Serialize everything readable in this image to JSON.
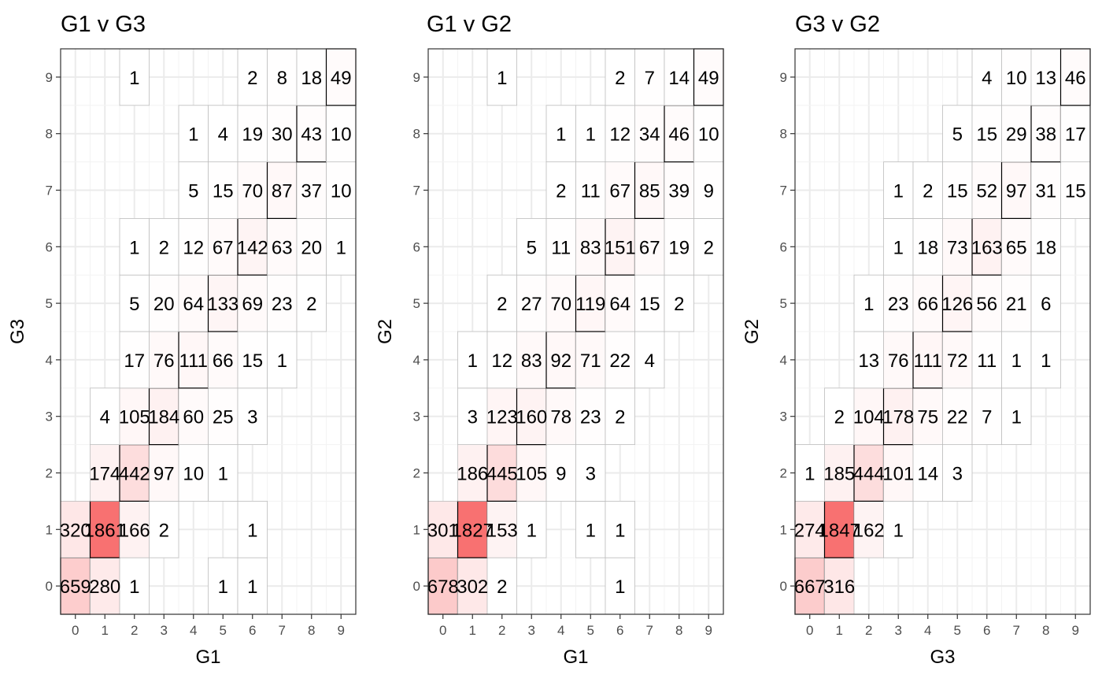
{
  "chart_data": [
    {
      "type": "heatmap",
      "title": "G1 v G3",
      "xlabel": "G1",
      "ylabel": "G3",
      "x_ticks": [
        "0",
        "1",
        "2",
        "3",
        "4",
        "5",
        "6",
        "7",
        "8",
        "9"
      ],
      "y_ticks": [
        "0",
        "1",
        "2",
        "3",
        "4",
        "5",
        "6",
        "7",
        "8",
        "9"
      ],
      "xlim": [
        -0.5,
        9.5
      ],
      "ylim": [
        -0.5,
        9.5
      ],
      "grid": true,
      "fill_colors": {
        "low": "#ffffff",
        "high": "#f87171"
      },
      "highlight_border": "#000000",
      "cells": [
        {
          "x": 0,
          "y": 0,
          "v": 659
        },
        {
          "x": 1,
          "y": 0,
          "v": 280
        },
        {
          "x": 2,
          "y": 0,
          "v": 1
        },
        {
          "x": 5,
          "y": 0,
          "v": 1
        },
        {
          "x": 6,
          "y": 0,
          "v": 1
        },
        {
          "x": 0,
          "y": 1,
          "v": 320
        },
        {
          "x": 1,
          "y": 1,
          "v": 1861
        },
        {
          "x": 2,
          "y": 1,
          "v": 166
        },
        {
          "x": 3,
          "y": 1,
          "v": 2
        },
        {
          "x": 6,
          "y": 1,
          "v": 1
        },
        {
          "x": 1,
          "y": 2,
          "v": 174
        },
        {
          "x": 2,
          "y": 2,
          "v": 442
        },
        {
          "x": 3,
          "y": 2,
          "v": 97
        },
        {
          "x": 4,
          "y": 2,
          "v": 10
        },
        {
          "x": 5,
          "y": 2,
          "v": 1
        },
        {
          "x": 1,
          "y": 3,
          "v": 4
        },
        {
          "x": 2,
          "y": 3,
          "v": 105
        },
        {
          "x": 3,
          "y": 3,
          "v": 184
        },
        {
          "x": 4,
          "y": 3,
          "v": 60
        },
        {
          "x": 5,
          "y": 3,
          "v": 25
        },
        {
          "x": 6,
          "y": 3,
          "v": 3
        },
        {
          "x": 2,
          "y": 4,
          "v": 17
        },
        {
          "x": 3,
          "y": 4,
          "v": 76
        },
        {
          "x": 4,
          "y": 4,
          "v": 111
        },
        {
          "x": 5,
          "y": 4,
          "v": 66
        },
        {
          "x": 6,
          "y": 4,
          "v": 15
        },
        {
          "x": 7,
          "y": 4,
          "v": 1
        },
        {
          "x": 2,
          "y": 5,
          "v": 5
        },
        {
          "x": 3,
          "y": 5,
          "v": 20
        },
        {
          "x": 4,
          "y": 5,
          "v": 64
        },
        {
          "x": 5,
          "y": 5,
          "v": 133
        },
        {
          "x": 6,
          "y": 5,
          "v": 69
        },
        {
          "x": 7,
          "y": 5,
          "v": 23
        },
        {
          "x": 8,
          "y": 5,
          "v": 2
        },
        {
          "x": 2,
          "y": 6,
          "v": 1
        },
        {
          "x": 3,
          "y": 6,
          "v": 2
        },
        {
          "x": 4,
          "y": 6,
          "v": 12
        },
        {
          "x": 5,
          "y": 6,
          "v": 67
        },
        {
          "x": 6,
          "y": 6,
          "v": 142
        },
        {
          "x": 7,
          "y": 6,
          "v": 63
        },
        {
          "x": 8,
          "y": 6,
          "v": 20
        },
        {
          "x": 9,
          "y": 6,
          "v": 1
        },
        {
          "x": 4,
          "y": 7,
          "v": 5
        },
        {
          "x": 5,
          "y": 7,
          "v": 15
        },
        {
          "x": 6,
          "y": 7,
          "v": 70
        },
        {
          "x": 7,
          "y": 7,
          "v": 87
        },
        {
          "x": 8,
          "y": 7,
          "v": 37
        },
        {
          "x": 9,
          "y": 7,
          "v": 10
        },
        {
          "x": 4,
          "y": 8,
          "v": 1
        },
        {
          "x": 5,
          "y": 8,
          "v": 4
        },
        {
          "x": 6,
          "y": 8,
          "v": 19
        },
        {
          "x": 7,
          "y": 8,
          "v": 30
        },
        {
          "x": 8,
          "y": 8,
          "v": 43
        },
        {
          "x": 9,
          "y": 8,
          "v": 10
        },
        {
          "x": 2,
          "y": 9,
          "v": 1
        },
        {
          "x": 6,
          "y": 9,
          "v": 2
        },
        {
          "x": 7,
          "y": 9,
          "v": 8
        },
        {
          "x": 8,
          "y": 9,
          "v": 18
        },
        {
          "x": 9,
          "y": 9,
          "v": 49
        }
      ]
    },
    {
      "type": "heatmap",
      "title": "G1 v G2",
      "xlabel": "G1",
      "ylabel": "G2",
      "x_ticks": [
        "0",
        "1",
        "2",
        "3",
        "4",
        "5",
        "6",
        "7",
        "8",
        "9"
      ],
      "y_ticks": [
        "0",
        "1",
        "2",
        "3",
        "4",
        "5",
        "6",
        "7",
        "8",
        "9"
      ],
      "xlim": [
        -0.5,
        9.5
      ],
      "ylim": [
        -0.5,
        9.5
      ],
      "grid": true,
      "fill_colors": {
        "low": "#ffffff",
        "high": "#f87171"
      },
      "highlight_border": "#000000",
      "cells": [
        {
          "x": 0,
          "y": 0,
          "v": 678
        },
        {
          "x": 1,
          "y": 0,
          "v": 302
        },
        {
          "x": 2,
          "y": 0,
          "v": 2
        },
        {
          "x": 6,
          "y": 0,
          "v": 1
        },
        {
          "x": 0,
          "y": 1,
          "v": 301
        },
        {
          "x": 1,
          "y": 1,
          "v": 1827
        },
        {
          "x": 2,
          "y": 1,
          "v": 153
        },
        {
          "x": 3,
          "y": 1,
          "v": 1
        },
        {
          "x": 5,
          "y": 1,
          "v": 1
        },
        {
          "x": 6,
          "y": 1,
          "v": 1
        },
        {
          "x": 1,
          "y": 2,
          "v": 186
        },
        {
          "x": 2,
          "y": 2,
          "v": 445
        },
        {
          "x": 3,
          "y": 2,
          "v": 105
        },
        {
          "x": 4,
          "y": 2,
          "v": 9
        },
        {
          "x": 5,
          "y": 2,
          "v": 3
        },
        {
          "x": 1,
          "y": 3,
          "v": 3
        },
        {
          "x": 2,
          "y": 3,
          "v": 123
        },
        {
          "x": 3,
          "y": 3,
          "v": 160
        },
        {
          "x": 4,
          "y": 3,
          "v": 78
        },
        {
          "x": 5,
          "y": 3,
          "v": 23
        },
        {
          "x": 6,
          "y": 3,
          "v": 2
        },
        {
          "x": 1,
          "y": 4,
          "v": 1
        },
        {
          "x": 2,
          "y": 4,
          "v": 12
        },
        {
          "x": 3,
          "y": 4,
          "v": 83
        },
        {
          "x": 4,
          "y": 4,
          "v": 92
        },
        {
          "x": 5,
          "y": 4,
          "v": 71
        },
        {
          "x": 6,
          "y": 4,
          "v": 22
        },
        {
          "x": 7,
          "y": 4,
          "v": 4
        },
        {
          "x": 2,
          "y": 5,
          "v": 2
        },
        {
          "x": 3,
          "y": 5,
          "v": 27
        },
        {
          "x": 4,
          "y": 5,
          "v": 70
        },
        {
          "x": 5,
          "y": 5,
          "v": 119
        },
        {
          "x": 6,
          "y": 5,
          "v": 64
        },
        {
          "x": 7,
          "y": 5,
          "v": 15
        },
        {
          "x": 8,
          "y": 5,
          "v": 2
        },
        {
          "x": 3,
          "y": 6,
          "v": 5
        },
        {
          "x": 4,
          "y": 6,
          "v": 11
        },
        {
          "x": 5,
          "y": 6,
          "v": 83
        },
        {
          "x": 6,
          "y": 6,
          "v": 151
        },
        {
          "x": 7,
          "y": 6,
          "v": 67
        },
        {
          "x": 8,
          "y": 6,
          "v": 19
        },
        {
          "x": 9,
          "y": 6,
          "v": 2
        },
        {
          "x": 4,
          "y": 7,
          "v": 2
        },
        {
          "x": 5,
          "y": 7,
          "v": 11
        },
        {
          "x": 6,
          "y": 7,
          "v": 67
        },
        {
          "x": 7,
          "y": 7,
          "v": 85
        },
        {
          "x": 8,
          "y": 7,
          "v": 39
        },
        {
          "x": 9,
          "y": 7,
          "v": 9
        },
        {
          "x": 4,
          "y": 8,
          "v": 1
        },
        {
          "x": 5,
          "y": 8,
          "v": 1
        },
        {
          "x": 6,
          "y": 8,
          "v": 12
        },
        {
          "x": 7,
          "y": 8,
          "v": 34
        },
        {
          "x": 8,
          "y": 8,
          "v": 46
        },
        {
          "x": 9,
          "y": 8,
          "v": 10
        },
        {
          "x": 2,
          "y": 9,
          "v": 1
        },
        {
          "x": 6,
          "y": 9,
          "v": 2
        },
        {
          "x": 7,
          "y": 9,
          "v": 7
        },
        {
          "x": 8,
          "y": 9,
          "v": 14
        },
        {
          "x": 9,
          "y": 9,
          "v": 49
        }
      ]
    },
    {
      "type": "heatmap",
      "title": "G3 v G2",
      "xlabel": "G3",
      "ylabel": "G2",
      "x_ticks": [
        "0",
        "1",
        "2",
        "3",
        "4",
        "5",
        "6",
        "7",
        "8",
        "9"
      ],
      "y_ticks": [
        "0",
        "1",
        "2",
        "3",
        "4",
        "5",
        "6",
        "7",
        "8",
        "9"
      ],
      "xlim": [
        -0.5,
        9.5
      ],
      "ylim": [
        -0.5,
        9.5
      ],
      "grid": true,
      "fill_colors": {
        "low": "#ffffff",
        "high": "#f87171"
      },
      "highlight_border": "#000000",
      "cells": [
        {
          "x": 0,
          "y": 0,
          "v": 667
        },
        {
          "x": 1,
          "y": 0,
          "v": 316
        },
        {
          "x": 0,
          "y": 1,
          "v": 274
        },
        {
          "x": 1,
          "y": 1,
          "v": 1847
        },
        {
          "x": 2,
          "y": 1,
          "v": 162
        },
        {
          "x": 3,
          "y": 1,
          "v": 1
        },
        {
          "x": 0,
          "y": 2,
          "v": 1
        },
        {
          "x": 1,
          "y": 2,
          "v": 185
        },
        {
          "x": 2,
          "y": 2,
          "v": 444
        },
        {
          "x": 3,
          "y": 2,
          "v": 101
        },
        {
          "x": 4,
          "y": 2,
          "v": 14
        },
        {
          "x": 5,
          "y": 2,
          "v": 3
        },
        {
          "x": 1,
          "y": 3,
          "v": 2
        },
        {
          "x": 2,
          "y": 3,
          "v": 104
        },
        {
          "x": 3,
          "y": 3,
          "v": 178
        },
        {
          "x": 4,
          "y": 3,
          "v": 75
        },
        {
          "x": 5,
          "y": 3,
          "v": 22
        },
        {
          "x": 6,
          "y": 3,
          "v": 7
        },
        {
          "x": 7,
          "y": 3,
          "v": 1
        },
        {
          "x": 2,
          "y": 4,
          "v": 13
        },
        {
          "x": 3,
          "y": 4,
          "v": 76
        },
        {
          "x": 4,
          "y": 4,
          "v": 111
        },
        {
          "x": 5,
          "y": 4,
          "v": 72
        },
        {
          "x": 6,
          "y": 4,
          "v": 11
        },
        {
          "x": 7,
          "y": 4,
          "v": 1
        },
        {
          "x": 8,
          "y": 4,
          "v": 1
        },
        {
          "x": 2,
          "y": 5,
          "v": 1
        },
        {
          "x": 3,
          "y": 5,
          "v": 23
        },
        {
          "x": 4,
          "y": 5,
          "v": 66
        },
        {
          "x": 5,
          "y": 5,
          "v": 126
        },
        {
          "x": 6,
          "y": 5,
          "v": 56
        },
        {
          "x": 7,
          "y": 5,
          "v": 21
        },
        {
          "x": 8,
          "y": 5,
          "v": 6
        },
        {
          "x": 3,
          "y": 6,
          "v": 1
        },
        {
          "x": 4,
          "y": 6,
          "v": 18
        },
        {
          "x": 5,
          "y": 6,
          "v": 73
        },
        {
          "x": 6,
          "y": 6,
          "v": 163
        },
        {
          "x": 7,
          "y": 6,
          "v": 65
        },
        {
          "x": 8,
          "y": 6,
          "v": 18
        },
        {
          "x": 3,
          "y": 7,
          "v": 1
        },
        {
          "x": 4,
          "y": 7,
          "v": 2
        },
        {
          "x": 5,
          "y": 7,
          "v": 15
        },
        {
          "x": 6,
          "y": 7,
          "v": 52
        },
        {
          "x": 7,
          "y": 7,
          "v": 97
        },
        {
          "x": 8,
          "y": 7,
          "v": 31
        },
        {
          "x": 9,
          "y": 7,
          "v": 15
        },
        {
          "x": 5,
          "y": 8,
          "v": 5
        },
        {
          "x": 6,
          "y": 8,
          "v": 15
        },
        {
          "x": 7,
          "y": 8,
          "v": 29
        },
        {
          "x": 8,
          "y": 8,
          "v": 38
        },
        {
          "x": 9,
          "y": 8,
          "v": 17
        },
        {
          "x": 6,
          "y": 9,
          "v": 4
        },
        {
          "x": 7,
          "y": 9,
          "v": 10
        },
        {
          "x": 8,
          "y": 9,
          "v": 13
        },
        {
          "x": 9,
          "y": 9,
          "v": 46
        }
      ]
    }
  ]
}
